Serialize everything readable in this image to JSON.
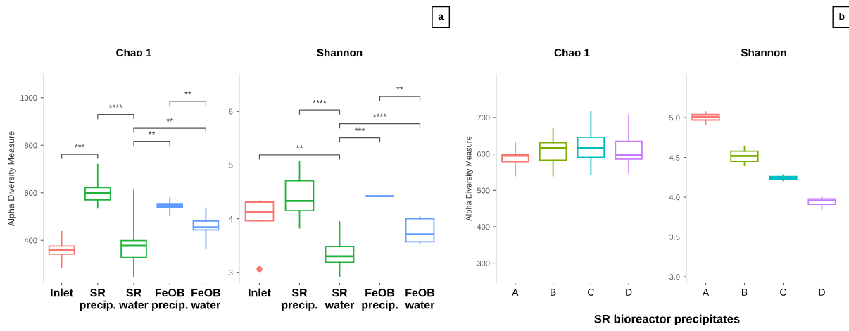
{
  "chart_data": [
    {
      "type": "box",
      "title": "Chao 1",
      "ylabel": "Alpha Diversity Measure",
      "categories": [
        "Inlet",
        "SR\nprecip.",
        "SR\nwater",
        "FeOB\nprecip.",
        "FeOB\nwater"
      ],
      "colors": [
        "#f8766d",
        "#1fb33a",
        "#1fb33a",
        "#619cff",
        "#619cff"
      ],
      "ylim": [
        220,
        1100
      ],
      "yticks": [
        400,
        600,
        800,
        1000
      ],
      "grid": false,
      "boxes": [
        {
          "low": 285,
          "q1": 342,
          "median": 358,
          "q3": 376,
          "high": 437
        },
        {
          "low": 536,
          "q1": 570,
          "median": 599,
          "q3": 622,
          "high": 719
        },
        {
          "low": 249,
          "q1": 328,
          "median": 377,
          "q3": 399,
          "high": 610
        },
        {
          "low": 508,
          "q1": 540,
          "median": 548,
          "q3": 554,
          "high": 577
        },
        {
          "low": 367,
          "q1": 444,
          "median": 455,
          "q3": 481,
          "high": 535
        }
      ],
      "annotations": [
        "***",
        "****",
        "**",
        "**",
        "**"
      ]
    },
    {
      "type": "box",
      "title": "Shannon",
      "categories": [
        "Inlet",
        "SR\nprecip.",
        "SR\nwater",
        "FeOB\nprecip.",
        "FeOB\nwater"
      ],
      "colors": [
        "#f8766d",
        "#1fb33a",
        "#1fb33a",
        "#619cff",
        "#619cff"
      ],
      "ylim": [
        2.8,
        6.7
      ],
      "yticks": [
        3,
        4,
        5,
        6
      ],
      "grid": false,
      "boxes": [
        {
          "low": 3.96,
          "q1": 3.96,
          "median": 4.13,
          "q3": 4.31,
          "high": 4.33,
          "outliers": [
            3.06
          ]
        },
        {
          "low": 3.83,
          "q1": 4.15,
          "median": 4.33,
          "q3": 4.71,
          "high": 5.07
        },
        {
          "low": 2.93,
          "q1": 3.19,
          "median": 3.3,
          "q3": 3.48,
          "high": 3.94
        },
        {
          "low": 4.42,
          "q1": 4.42,
          "median": 4.42,
          "q3": 4.42,
          "high": 4.42
        },
        {
          "low": 3.55,
          "q1": 3.57,
          "median": 3.71,
          "q3": 4.0,
          "high": 4.04
        }
      ],
      "annotations": [
        "**",
        "****",
        "****",
        "***",
        "**",
        "a"
      ]
    },
    {
      "type": "box",
      "title": "Chao 1",
      "ylabel": "Alpha Diversity Measure",
      "categories": [
        "A",
        "B",
        "C",
        "D"
      ],
      "colors": [
        "#f8766d",
        "#7cae00",
        "#00bfc4",
        "#c77cff"
      ],
      "ylim": [
        245,
        820
      ],
      "yticks": [
        300,
        400,
        500,
        600,
        700
      ],
      "grid": false,
      "boxes": [
        {
          "low": 540,
          "q1": 579,
          "median": 595,
          "q3": 599,
          "high": 632
        },
        {
          "low": 540,
          "q1": 583,
          "median": 616,
          "q3": 631,
          "high": 669
        },
        {
          "low": 544,
          "q1": 591,
          "median": 616,
          "q3": 646,
          "high": 717
        },
        {
          "low": 547,
          "q1": 586,
          "median": 598,
          "q3": 635,
          "high": 708
        }
      ],
      "annotations": [
        "SR bioreactor precipitates"
      ]
    },
    {
      "type": "box",
      "title": "Shannon",
      "categories": [
        "A",
        "B",
        "C",
        "D"
      ],
      "colors": [
        "#f8766d",
        "#7cae00",
        "#00bfc4",
        "#c77cff"
      ],
      "ylim": [
        2.92,
        5.55
      ],
      "yticks": [
        {
          "value": 3,
          "label": "3.0"
        },
        3.5,
        {
          "value": 4,
          "label": "4.0"
        },
        4.5,
        {
          "value": 5,
          "label": "5.0"
        }
      ],
      "grid": false,
      "boxes": [
        {
          "low": 4.92,
          "q1": 4.97,
          "median": 5.01,
          "q3": 5.04,
          "high": 5.07
        },
        {
          "low": 4.4,
          "q1": 4.45,
          "median": 4.52,
          "q3": 4.58,
          "high": 4.64
        },
        {
          "low": 4.21,
          "q1": 4.23,
          "median": 4.24,
          "q3": 4.26,
          "high": 4.28
        },
        {
          "low": 3.85,
          "q1": 3.91,
          "median": 3.96,
          "q3": 3.98,
          "high": 4.0
        }
      ],
      "annotations": [
        "b"
      ]
    }
  ]
}
